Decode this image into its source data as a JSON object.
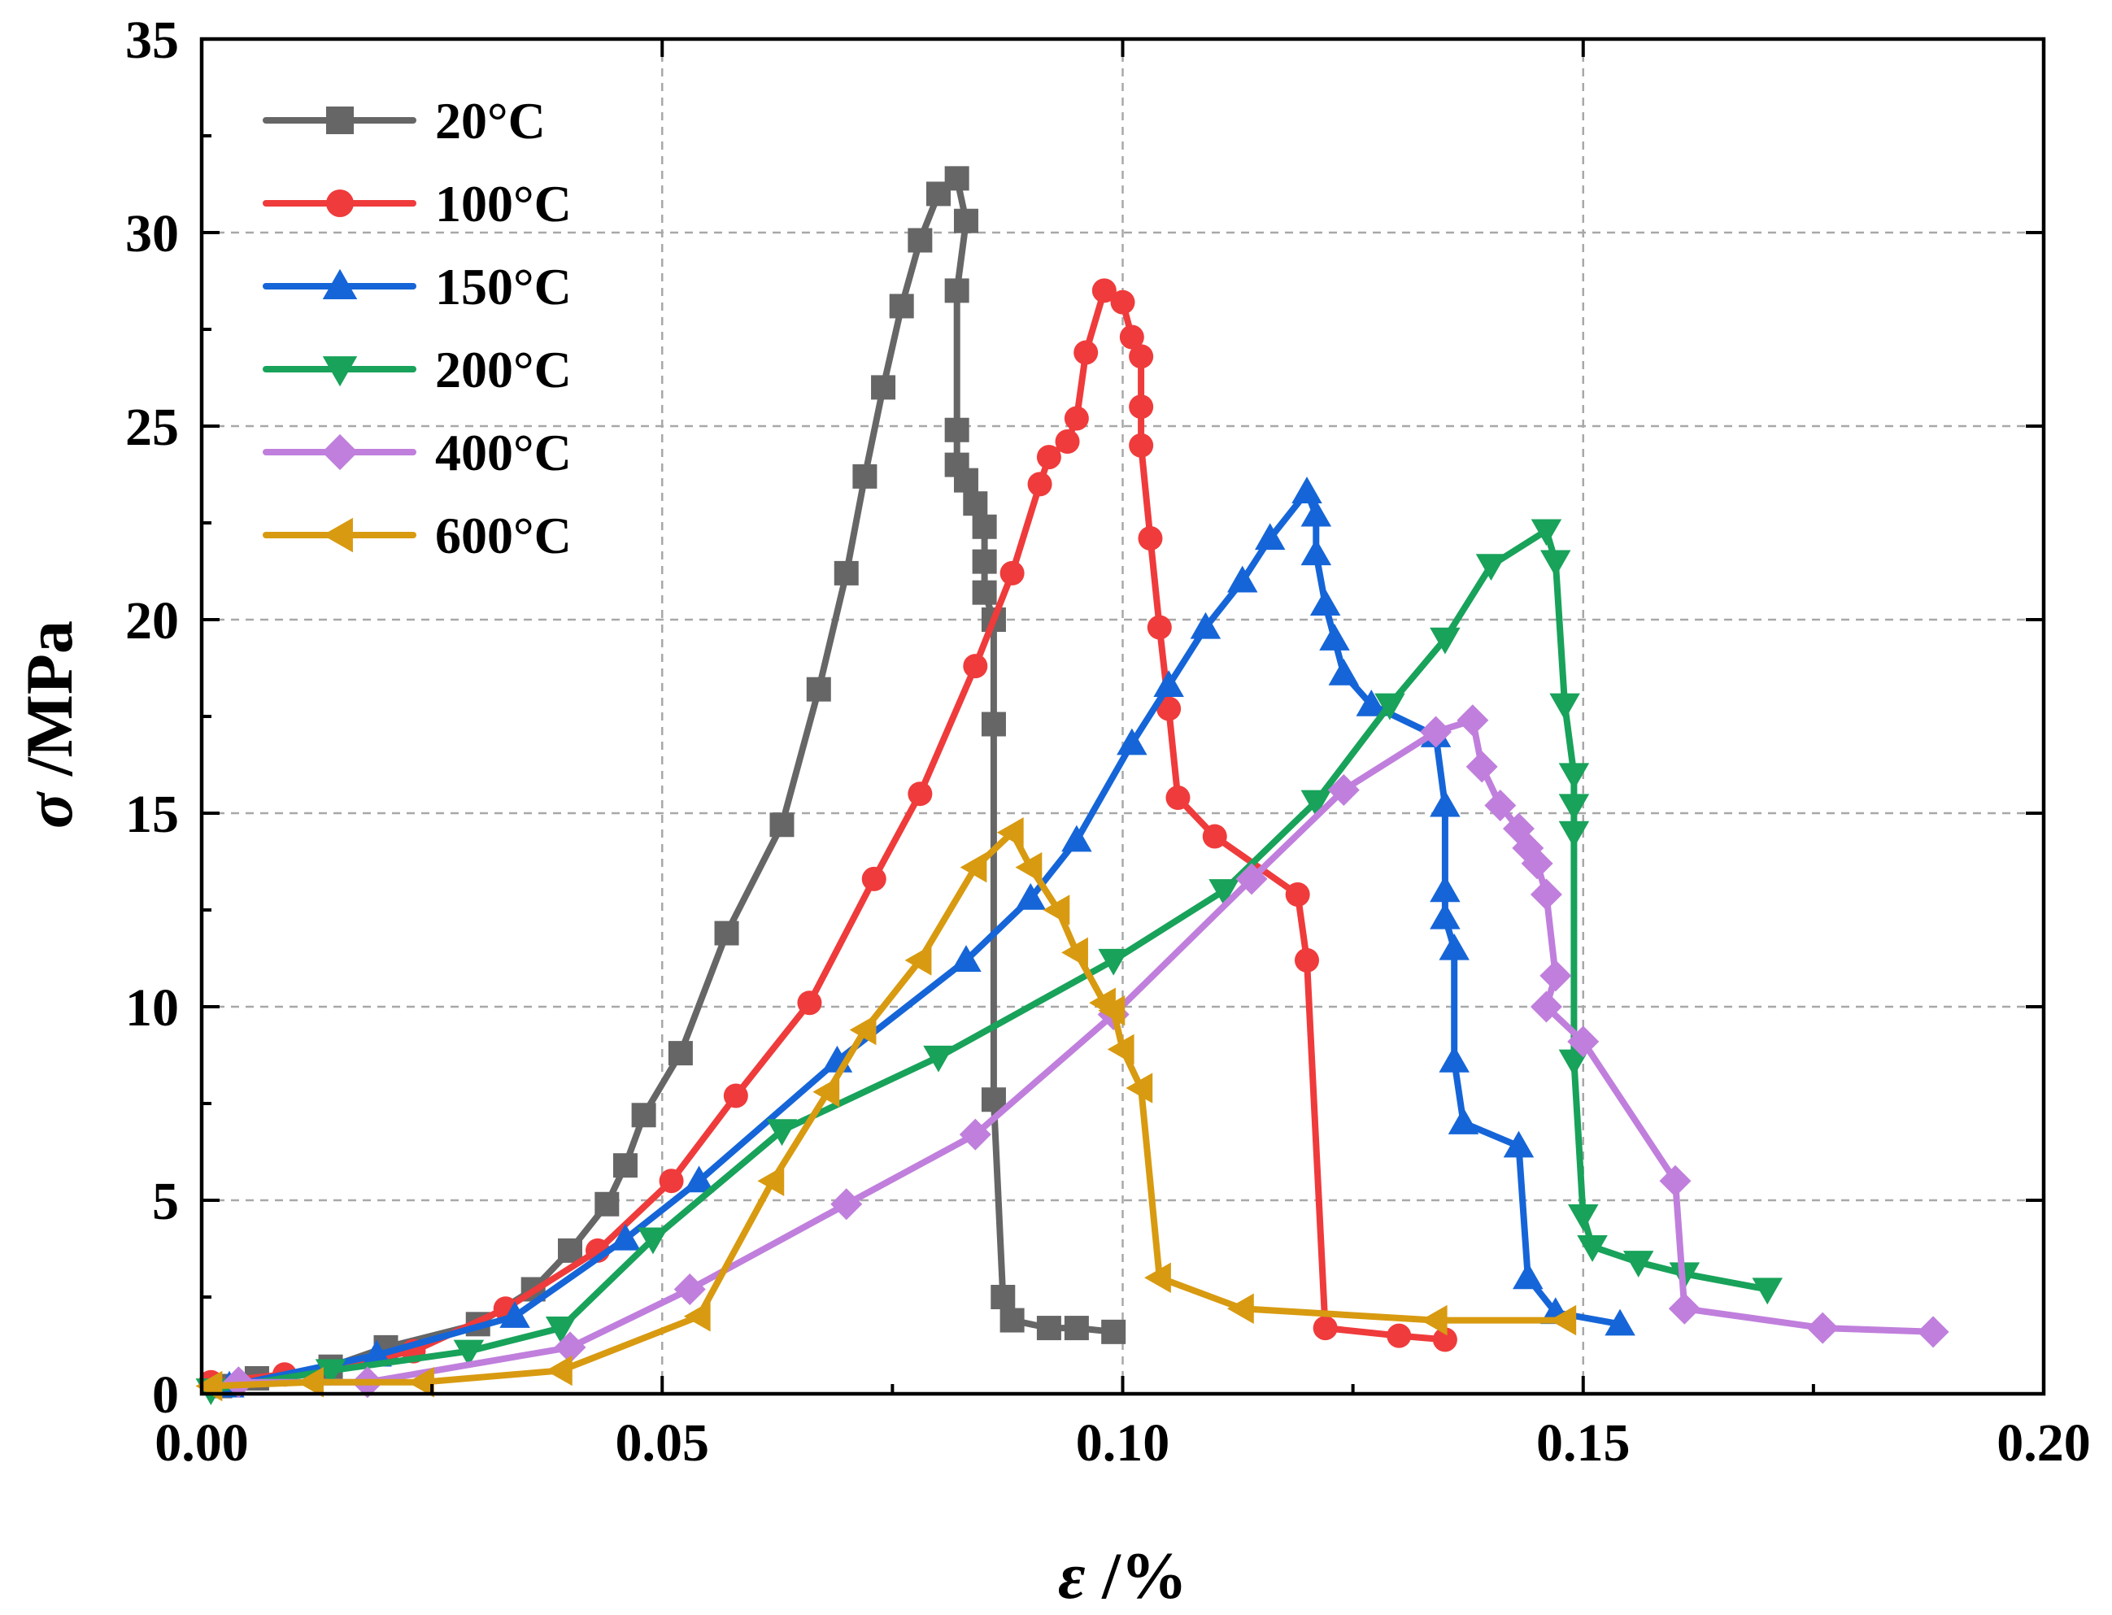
{
  "chart_data": {
    "type": "line",
    "title": "",
    "xlabel": {
      "symbol": "ε",
      "unit": "/%"
    },
    "ylabel": {
      "symbol": "σ",
      "unit": "/MPa"
    },
    "xlim": [
      0,
      0.2
    ],
    "ylim": [
      0,
      35
    ],
    "x_ticks": [
      0,
      0.05,
      0.1,
      0.15,
      0.2
    ],
    "x_tick_labels": [
      "0.00",
      "0.05",
      "0.10",
      "0.15",
      "0.20"
    ],
    "y_ticks": [
      0,
      5,
      10,
      15,
      20,
      25,
      30,
      35
    ],
    "y_tick_labels": [
      "0",
      "5",
      "10",
      "15",
      "20",
      "25",
      "30",
      "35"
    ],
    "grid": true,
    "legend_position": "top-left",
    "series": [
      {
        "name": "20°C",
        "color": "#666666",
        "marker": "square",
        "points": [
          [
            0.002,
            0.2
          ],
          [
            0.006,
            0.4
          ],
          [
            0.014,
            0.7
          ],
          [
            0.02,
            1.2
          ],
          [
            0.03,
            1.8
          ],
          [
            0.036,
            2.7
          ],
          [
            0.04,
            3.7
          ],
          [
            0.044,
            4.9
          ],
          [
            0.046,
            5.9
          ],
          [
            0.048,
            7.2
          ],
          [
            0.052,
            8.8
          ],
          [
            0.057,
            11.9
          ],
          [
            0.063,
            14.7
          ],
          [
            0.067,
            18.2
          ],
          [
            0.07,
            21.2
          ],
          [
            0.072,
            23.7
          ],
          [
            0.074,
            26.0
          ],
          [
            0.076,
            28.1
          ],
          [
            0.078,
            29.8
          ],
          [
            0.08,
            31.0
          ],
          [
            0.082,
            31.4
          ],
          [
            0.083,
            30.3
          ],
          [
            0.082,
            28.5
          ],
          [
            0.082,
            24.9
          ],
          [
            0.082,
            24.0
          ],
          [
            0.083,
            23.6
          ],
          [
            0.084,
            23.0
          ],
          [
            0.085,
            22.4
          ],
          [
            0.085,
            21.5
          ],
          [
            0.085,
            20.7
          ],
          [
            0.086,
            20.0
          ],
          [
            0.086,
            17.3
          ],
          [
            0.086,
            7.6
          ],
          [
            0.087,
            2.5
          ],
          [
            0.088,
            1.9
          ],
          [
            0.092,
            1.7
          ],
          [
            0.095,
            1.7
          ],
          [
            0.099,
            1.6
          ]
        ]
      },
      {
        "name": "100°C",
        "color": "#ef3b3b",
        "marker": "circle",
        "points": [
          [
            0.001,
            0.3
          ],
          [
            0.009,
            0.5
          ],
          [
            0.023,
            1.1
          ],
          [
            0.033,
            2.2
          ],
          [
            0.043,
            3.7
          ],
          [
            0.051,
            5.5
          ],
          [
            0.058,
            7.7
          ],
          [
            0.066,
            10.1
          ],
          [
            0.073,
            13.3
          ],
          [
            0.078,
            15.5
          ],
          [
            0.084,
            18.8
          ],
          [
            0.088,
            21.2
          ],
          [
            0.091,
            23.5
          ],
          [
            0.092,
            24.2
          ],
          [
            0.094,
            24.6
          ],
          [
            0.095,
            25.2
          ],
          [
            0.096,
            26.9
          ],
          [
            0.098,
            28.5
          ],
          [
            0.1,
            28.2
          ],
          [
            0.101,
            27.3
          ],
          [
            0.102,
            26.8
          ],
          [
            0.102,
            25.5
          ],
          [
            0.102,
            24.5
          ],
          [
            0.103,
            22.1
          ],
          [
            0.104,
            19.8
          ],
          [
            0.105,
            17.7
          ],
          [
            0.106,
            15.4
          ],
          [
            0.11,
            14.4
          ],
          [
            0.119,
            12.9
          ],
          [
            0.12,
            11.2
          ],
          [
            0.122,
            1.7
          ],
          [
            0.13,
            1.5
          ],
          [
            0.135,
            1.4
          ]
        ]
      },
      {
        "name": "150°C",
        "color": "#1565d8",
        "marker": "triangle-up",
        "points": [
          [
            0.003,
            0.2
          ],
          [
            0.019,
            1.0
          ],
          [
            0.034,
            2.0
          ],
          [
            0.046,
            4.0
          ],
          [
            0.054,
            5.5
          ],
          [
            0.069,
            8.6
          ],
          [
            0.083,
            11.2
          ],
          [
            0.09,
            12.8
          ],
          [
            0.095,
            14.3
          ],
          [
            0.101,
            16.8
          ],
          [
            0.105,
            18.3
          ],
          [
            0.109,
            19.8
          ],
          [
            0.113,
            21.0
          ],
          [
            0.116,
            22.1
          ],
          [
            0.12,
            23.3
          ],
          [
            0.121,
            22.7
          ],
          [
            0.121,
            21.7
          ],
          [
            0.122,
            20.4
          ],
          [
            0.123,
            19.5
          ],
          [
            0.124,
            18.6
          ],
          [
            0.127,
            17.8
          ],
          [
            0.134,
            17.0
          ],
          [
            0.135,
            15.2
          ],
          [
            0.135,
            13.0
          ],
          [
            0.135,
            12.3
          ],
          [
            0.136,
            11.5
          ],
          [
            0.136,
            8.6
          ],
          [
            0.137,
            7.0
          ],
          [
            0.143,
            6.4
          ],
          [
            0.144,
            3.0
          ],
          [
            0.147,
            2.1
          ],
          [
            0.154,
            1.8
          ]
        ]
      },
      {
        "name": "200°C",
        "color": "#18a25a",
        "marker": "triangle-down",
        "points": [
          [
            0.001,
            0.1
          ],
          [
            0.014,
            0.6
          ],
          [
            0.029,
            1.1
          ],
          [
            0.039,
            1.7
          ],
          [
            0.049,
            4.0
          ],
          [
            0.063,
            6.8
          ],
          [
            0.08,
            8.7
          ],
          [
            0.099,
            11.2
          ],
          [
            0.111,
            13.0
          ],
          [
            0.121,
            15.3
          ],
          [
            0.129,
            17.8
          ],
          [
            0.135,
            19.5
          ],
          [
            0.14,
            21.4
          ],
          [
            0.146,
            22.3
          ],
          [
            0.147,
            21.5
          ],
          [
            0.148,
            17.8
          ],
          [
            0.149,
            16.0
          ],
          [
            0.149,
            15.2
          ],
          [
            0.149,
            14.5
          ],
          [
            0.149,
            8.6
          ],
          [
            0.15,
            4.6
          ],
          [
            0.151,
            3.8
          ],
          [
            0.156,
            3.4
          ],
          [
            0.161,
            3.1
          ],
          [
            0.17,
            2.7
          ]
        ]
      },
      {
        "name": "400°C",
        "color": "#c07fdc",
        "marker": "diamond",
        "points": [
          [
            0.004,
            0.3
          ],
          [
            0.018,
            0.3
          ],
          [
            0.04,
            1.2
          ],
          [
            0.053,
            2.7
          ],
          [
            0.07,
            4.9
          ],
          [
            0.084,
            6.7
          ],
          [
            0.099,
            9.8
          ],
          [
            0.114,
            13.3
          ],
          [
            0.124,
            15.6
          ],
          [
            0.134,
            17.1
          ],
          [
            0.138,
            17.4
          ],
          [
            0.139,
            16.2
          ],
          [
            0.141,
            15.2
          ],
          [
            0.143,
            14.6
          ],
          [
            0.144,
            14.1
          ],
          [
            0.145,
            13.7
          ],
          [
            0.146,
            12.9
          ],
          [
            0.147,
            10.8
          ],
          [
            0.146,
            10.0
          ],
          [
            0.15,
            9.1
          ],
          [
            0.16,
            5.5
          ],
          [
            0.161,
            2.2
          ],
          [
            0.176,
            1.7
          ],
          [
            0.188,
            1.6
          ]
        ]
      },
      {
        "name": "600°C",
        "color": "#d89a10",
        "marker": "triangle-left",
        "points": [
          [
            0.001,
            0.2
          ],
          [
            0.012,
            0.3
          ],
          [
            0.024,
            0.3
          ],
          [
            0.039,
            0.6
          ],
          [
            0.054,
            2.0
          ],
          [
            0.062,
            5.5
          ],
          [
            0.068,
            7.8
          ],
          [
            0.072,
            9.4
          ],
          [
            0.078,
            11.2
          ],
          [
            0.084,
            13.6
          ],
          [
            0.088,
            14.5
          ],
          [
            0.09,
            13.6
          ],
          [
            0.093,
            12.5
          ],
          [
            0.095,
            11.4
          ],
          [
            0.098,
            10.1
          ],
          [
            0.099,
            9.9
          ],
          [
            0.1,
            8.9
          ],
          [
            0.102,
            7.9
          ],
          [
            0.104,
            3.0
          ],
          [
            0.113,
            2.2
          ],
          [
            0.134,
            1.9
          ],
          [
            0.148,
            1.9
          ]
        ]
      }
    ]
  }
}
